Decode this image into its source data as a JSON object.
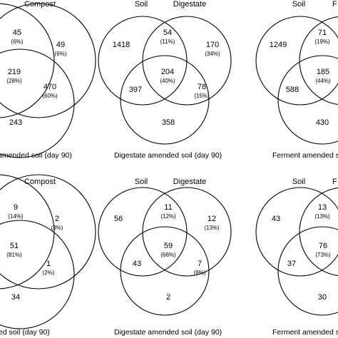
{
  "panels": [
    {
      "set_labels": [
        "",
        "Compost"
      ],
      "regions": {
        "top_left": {
          "count": "",
          "pct": ""
        },
        "top_overlap": {
          "count": "45",
          "pct": "(6%)"
        },
        "top_right": {
          "count": "49",
          "pct": "(6%)"
        },
        "left_overlap": {
          "count": "",
          "pct": ""
        },
        "center": {
          "count": "219",
          "pct": "(28%)"
        },
        "right_overlap": {
          "count": "470",
          "pct": "(60%)"
        },
        "bottom": {
          "count": "243",
          "pct": ""
        }
      },
      "caption": "amended soil (day 90)"
    },
    {
      "set_labels": [
        "Soil",
        "Digestate"
      ],
      "regions": {
        "top_left": {
          "count": "1418",
          "pct": ""
        },
        "top_overlap": {
          "count": "54",
          "pct": "(11%)"
        },
        "top_right": {
          "count": "170",
          "pct": "(34%)"
        },
        "left_overlap": {
          "count": "397",
          "pct": ""
        },
        "center": {
          "count": "204",
          "pct": "(40%)"
        },
        "right_overlap": {
          "count": "78",
          "pct": "(15%)"
        },
        "bottom": {
          "count": "358",
          "pct": ""
        }
      },
      "caption": "Digestate amended soil (day 90)"
    },
    {
      "set_labels": [
        "Soil",
        "F"
      ],
      "regions": {
        "top_left": {
          "count": "1249",
          "pct": ""
        },
        "top_overlap": {
          "count": "71",
          "pct": "(19%)"
        },
        "top_right": {
          "count": "",
          "pct": ""
        },
        "left_overlap": {
          "count": "588",
          "pct": ""
        },
        "center": {
          "count": "185",
          "pct": "(44%)"
        },
        "right_overlap": {
          "count": "",
          "pct": ""
        },
        "bottom": {
          "count": "430",
          "pct": ""
        }
      },
      "caption": "Ferment amended s"
    },
    {
      "set_labels": [
        "",
        "Compost"
      ],
      "regions": {
        "top_left": {
          "count": "",
          "pct": ""
        },
        "top_overlap": {
          "count": "9",
          "pct": "(14%)"
        },
        "top_right": {
          "count": "2",
          "pct": "(3%)"
        },
        "left_overlap": {
          "count": "",
          "pct": ""
        },
        "center": {
          "count": "51",
          "pct": "(81%)"
        },
        "right_overlap": {
          "count": "1",
          "pct": "(2%)"
        },
        "bottom": {
          "count": "34",
          "pct": ""
        }
      },
      "caption": "ed soil (day 90)"
    },
    {
      "set_labels": [
        "Soil",
        "Digestate"
      ],
      "regions": {
        "top_left": {
          "count": "56",
          "pct": ""
        },
        "top_overlap": {
          "count": "11",
          "pct": "(12%)"
        },
        "top_right": {
          "count": "12",
          "pct": "(13%)"
        },
        "left_overlap": {
          "count": "43",
          "pct": ""
        },
        "center": {
          "count": "59",
          "pct": "(66%)"
        },
        "right_overlap": {
          "count": "7",
          "pct": "(8%)"
        },
        "bottom": {
          "count": "2",
          "pct": ""
        }
      },
      "caption": "Digestate amended soil (day 90)"
    },
    {
      "set_labels": [
        "Soil",
        "F"
      ],
      "regions": {
        "top_left": {
          "count": "43",
          "pct": ""
        },
        "top_overlap": {
          "count": "13",
          "pct": "(13%)"
        },
        "top_right": {
          "count": "",
          "pct": ""
        },
        "left_overlap": {
          "count": "37",
          "pct": ""
        },
        "center": {
          "count": "76",
          "pct": "(73%)"
        },
        "right_overlap": {
          "count": "",
          "pct": ""
        },
        "bottom": {
          "count": "30",
          "pct": ""
        }
      },
      "caption": "Ferment amended s"
    }
  ]
}
